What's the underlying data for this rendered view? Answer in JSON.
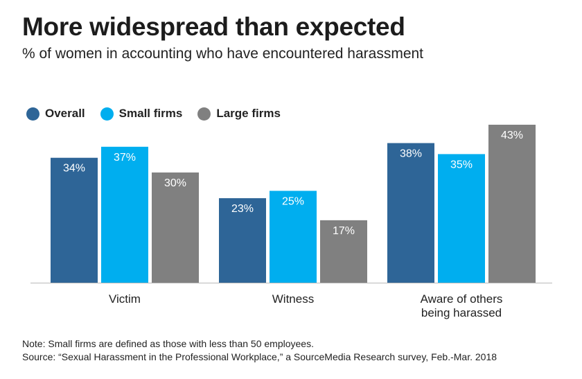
{
  "title": "More widespread than expected",
  "subtitle": "% of women in accounting who have encountered harassment",
  "legend": [
    {
      "label": "Overall",
      "color": "#2e6597"
    },
    {
      "label": "Small firms",
      "color": "#00aeef"
    },
    {
      "label": "Large firms",
      "color": "#808080"
    }
  ],
  "chart_data": {
    "type": "bar",
    "categories": [
      [
        "Victim"
      ],
      [
        "Witness"
      ],
      [
        "Aware of others",
        "being harassed"
      ]
    ],
    "series": [
      {
        "name": "Overall",
        "color": "#2e6597",
        "values": [
          34,
          23,
          38
        ],
        "labels": [
          "34%",
          "23%",
          "38%"
        ]
      },
      {
        "name": "Small firms",
        "color": "#00aeef",
        "values": [
          37,
          25,
          35
        ],
        "labels": [
          "37%",
          "25%",
          "35%"
        ]
      },
      {
        "name": "Large firms",
        "color": "#808080",
        "values": [
          30,
          17,
          43
        ],
        "labels": [
          "30%",
          "17%",
          "43%"
        ]
      }
    ],
    "ylim": [
      0,
      43
    ],
    "grid": false,
    "legend_position": "top-left"
  },
  "notes": {
    "note": "Note: Small firms are defined as those with less than 50 employees.",
    "source": "Source: “Sexual Harassment in the Professional Workplace,” a SourceMedia Research survey, Feb.-Mar. 2018"
  }
}
